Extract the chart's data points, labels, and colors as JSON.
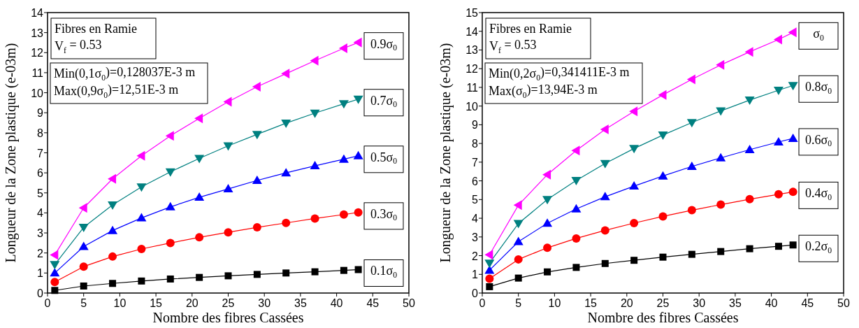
{
  "chart_data": [
    {
      "type": "line",
      "xlabel": "Nombre des fibres Cassées",
      "ylabel": "Longueur  de  la  Zone plastique (e-03m)",
      "x": [
        1,
        5,
        9,
        13,
        17,
        21,
        25,
        29,
        33,
        37,
        41,
        43
      ],
      "xlim": [
        0,
        50
      ],
      "xticks": [
        0,
        5,
        10,
        15,
        20,
        25,
        30,
        35,
        40,
        45,
        50
      ],
      "ylim": [
        0,
        14
      ],
      "yticks": [
        0,
        1,
        2,
        3,
        4,
        5,
        6,
        7,
        8,
        9,
        10,
        11,
        12,
        13,
        14
      ],
      "annotations": [
        "Fibres en Ramie",
        "V$_{f}$ = 0.53",
        "Min(0,1σ$_{0}$)=0,128037E-3 m",
        "Max(0,9σ$_{0}$)=12,51E-3 m"
      ],
      "series": [
        {
          "name": "0.1σ$_{0}$",
          "color": "#000000",
          "marker": "square",
          "values": [
            0.13,
            0.35,
            0.48,
            0.6,
            0.7,
            0.78,
            0.86,
            0.93,
            1.0,
            1.06,
            1.13,
            1.17
          ]
        },
        {
          "name": "0.3σ$_{0}$",
          "color": "#ff0000",
          "marker": "circle",
          "values": [
            0.55,
            1.32,
            1.82,
            2.2,
            2.5,
            2.78,
            3.03,
            3.28,
            3.5,
            3.72,
            3.92,
            4.02
          ]
        },
        {
          "name": "0.5σ$_{0}$",
          "color": "#0000ff",
          "marker": "triangle",
          "values": [
            1.0,
            2.32,
            3.12,
            3.75,
            4.3,
            4.78,
            5.2,
            5.62,
            6.0,
            6.35,
            6.68,
            6.85
          ]
        },
        {
          "name": "0.7σ$_{0}$",
          "color": "#008080",
          "marker": "triangle-down",
          "values": [
            1.42,
            3.28,
            4.4,
            5.3,
            6.05,
            6.72,
            7.35,
            7.92,
            8.48,
            8.98,
            9.45,
            9.68
          ]
        },
        {
          "name": "0.9σ$_{0}$",
          "color": "#ff00ff",
          "marker": "triangle-left",
          "values": [
            1.9,
            4.25,
            5.7,
            6.85,
            7.85,
            8.72,
            9.55,
            10.3,
            10.95,
            11.6,
            12.22,
            12.51
          ]
        }
      ]
    },
    {
      "type": "line",
      "xlabel": "Nombre des fibres Cassées",
      "ylabel": "Longueur  de  la  Zone plastique (e-03m)",
      "x": [
        1,
        5,
        9,
        13,
        17,
        21,
        25,
        29,
        33,
        37,
        41,
        43
      ],
      "xlim": [
        0,
        50
      ],
      "xticks": [
        0,
        5,
        10,
        15,
        20,
        25,
        30,
        35,
        40,
        45,
        50
      ],
      "ylim": [
        0,
        15
      ],
      "yticks": [
        0,
        1,
        2,
        3,
        4,
        5,
        6,
        7,
        8,
        9,
        10,
        11,
        12,
        13,
        14,
        15
      ],
      "annotations": [
        "Fibres en Ramie",
        "V$_{f}$ = 0.53",
        "Min(0,2σ$_{0}$)=0,341411E-3 m",
        "Max(σ$_{0}$)=13,94E-3 m"
      ],
      "series": [
        {
          "name": "0.2σ$_{0}$",
          "color": "#000000",
          "marker": "square",
          "values": [
            0.34,
            0.8,
            1.13,
            1.37,
            1.58,
            1.75,
            1.92,
            2.07,
            2.22,
            2.37,
            2.5,
            2.57
          ]
        },
        {
          "name": "0.4σ$_{0}$",
          "color": "#ff0000",
          "marker": "circle",
          "values": [
            0.77,
            1.8,
            2.42,
            2.92,
            3.35,
            3.74,
            4.1,
            4.43,
            4.73,
            5.02,
            5.28,
            5.41
          ]
        },
        {
          "name": "0.6σ$_{0}$",
          "color": "#0000ff",
          "marker": "triangle",
          "values": [
            1.22,
            2.75,
            3.73,
            4.5,
            5.15,
            5.72,
            6.26,
            6.77,
            7.23,
            7.67,
            8.08,
            8.27
          ]
        },
        {
          "name": "0.8σ$_{0}$",
          "color": "#008080",
          "marker": "triangle-down",
          "values": [
            1.6,
            3.72,
            5.0,
            6.02,
            6.93,
            7.73,
            8.45,
            9.12,
            9.74,
            10.32,
            10.85,
            11.1
          ]
        },
        {
          "name": "σ$_{0}$",
          "color": "#ff00ff",
          "marker": "triangle-left",
          "values": [
            2.05,
            4.7,
            6.33,
            7.62,
            8.75,
            9.72,
            10.6,
            11.43,
            12.2,
            12.9,
            13.56,
            13.94
          ]
        }
      ]
    }
  ]
}
